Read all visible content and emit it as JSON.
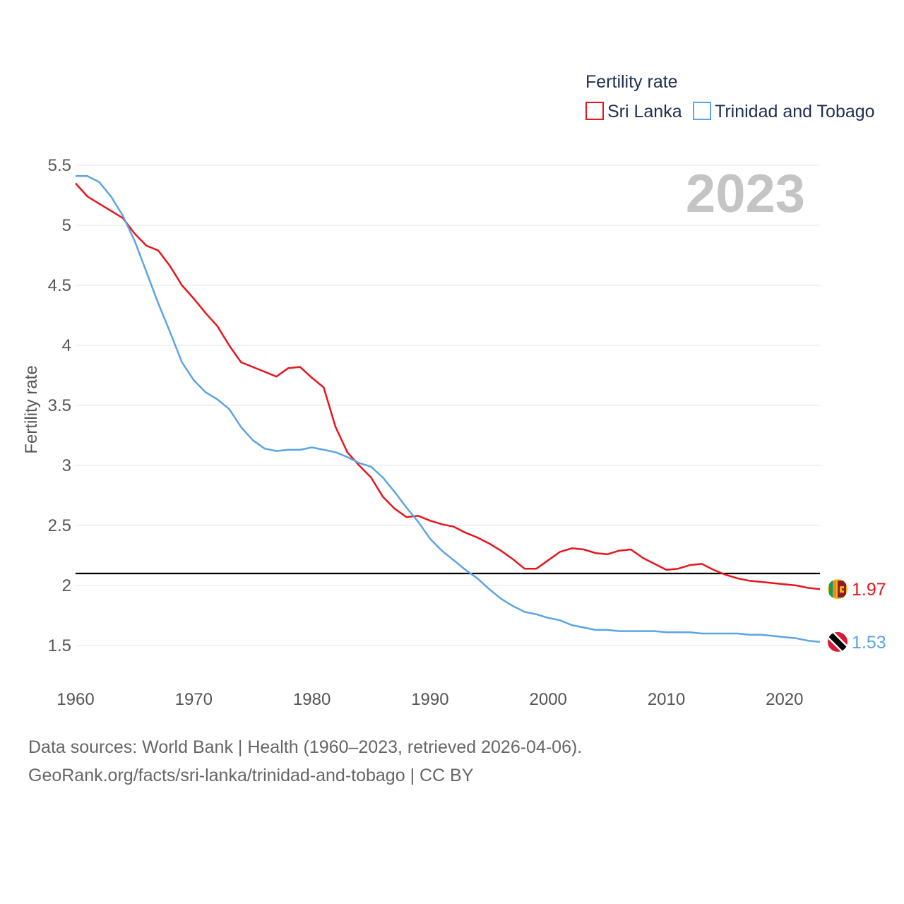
{
  "chart_data": {
    "type": "line",
    "legend_title": "Fertility rate",
    "ylabel": "Fertility rate",
    "year_label": "2023",
    "ylim": [
      1.35,
      5.5
    ],
    "xlim": [
      1960,
      2023
    ],
    "yticks": [
      1.5,
      2,
      2.5,
      3,
      3.5,
      4,
      4.5,
      5,
      5.5
    ],
    "ytick_labels": [
      "1.5",
      "2",
      "2.5",
      "3",
      "3.5",
      "4",
      "4.5",
      "5",
      "5.5"
    ],
    "xticks": [
      1960,
      1970,
      1980,
      1990,
      2000,
      2010,
      2020
    ],
    "xtick_labels": [
      "1960",
      "1970",
      "1980",
      "1990",
      "2000",
      "2010",
      "2020"
    ],
    "reference_line": 2.1,
    "x": [
      1960,
      1961,
      1962,
      1963,
      1964,
      1965,
      1966,
      1967,
      1968,
      1969,
      1970,
      1971,
      1972,
      1973,
      1974,
      1975,
      1976,
      1977,
      1978,
      1979,
      1980,
      1981,
      1982,
      1983,
      1984,
      1985,
      1986,
      1987,
      1988,
      1989,
      1990,
      1991,
      1992,
      1993,
      1994,
      1995,
      1996,
      1997,
      1998,
      1999,
      2000,
      2001,
      2002,
      2003,
      2004,
      2005,
      2006,
      2007,
      2008,
      2009,
      2010,
      2011,
      2012,
      2013,
      2014,
      2015,
      2016,
      2017,
      2018,
      2019,
      2020,
      2021,
      2022,
      2023
    ],
    "series": [
      {
        "name": "Sri Lanka",
        "color": "#e8151b",
        "end_label": "1.97",
        "flag": "sri-lanka-flag",
        "values": [
          5.35,
          5.24,
          5.18,
          5.12,
          5.06,
          4.93,
          4.83,
          4.79,
          4.66,
          4.5,
          4.39,
          4.27,
          4.16,
          4.0,
          3.86,
          3.82,
          3.78,
          3.74,
          3.81,
          3.82,
          3.73,
          3.65,
          3.32,
          3.11,
          3.0,
          2.9,
          2.74,
          2.64,
          2.57,
          2.58,
          2.54,
          2.51,
          2.49,
          2.44,
          2.4,
          2.35,
          2.29,
          2.22,
          2.14,
          2.14,
          2.21,
          2.28,
          2.31,
          2.3,
          2.27,
          2.26,
          2.29,
          2.3,
          2.23,
          2.18,
          2.13,
          2.14,
          2.17,
          2.18,
          2.13,
          2.09,
          2.06,
          2.04,
          2.03,
          2.02,
          2.01,
          2.0,
          1.98,
          1.97
        ]
      },
      {
        "name": "Trinidad and Tobago",
        "color": "#5ba4e5",
        "end_label": "1.53",
        "flag": "trinidad-and-tobago-flag",
        "values": [
          5.41,
          5.41,
          5.36,
          5.24,
          5.08,
          4.87,
          4.61,
          4.35,
          4.11,
          3.86,
          3.71,
          3.61,
          3.55,
          3.47,
          3.32,
          3.21,
          3.14,
          3.12,
          3.13,
          3.13,
          3.15,
          3.13,
          3.11,
          3.07,
          3.02,
          2.99,
          2.9,
          2.78,
          2.65,
          2.53,
          2.39,
          2.29,
          2.21,
          2.13,
          2.06,
          1.97,
          1.89,
          1.83,
          1.78,
          1.76,
          1.73,
          1.71,
          1.67,
          1.65,
          1.63,
          1.63,
          1.62,
          1.62,
          1.62,
          1.62,
          1.61,
          1.61,
          1.61,
          1.6,
          1.6,
          1.6,
          1.6,
          1.59,
          1.59,
          1.58,
          1.57,
          1.56,
          1.54,
          1.53
        ]
      }
    ]
  },
  "footer": {
    "line1": "Data sources: World Bank | Health (1960–2023, retrieved 2026-04-06).",
    "line2": "GeoRank.org/facts/sri-lanka/trinidad-and-tobago | CC BY"
  }
}
